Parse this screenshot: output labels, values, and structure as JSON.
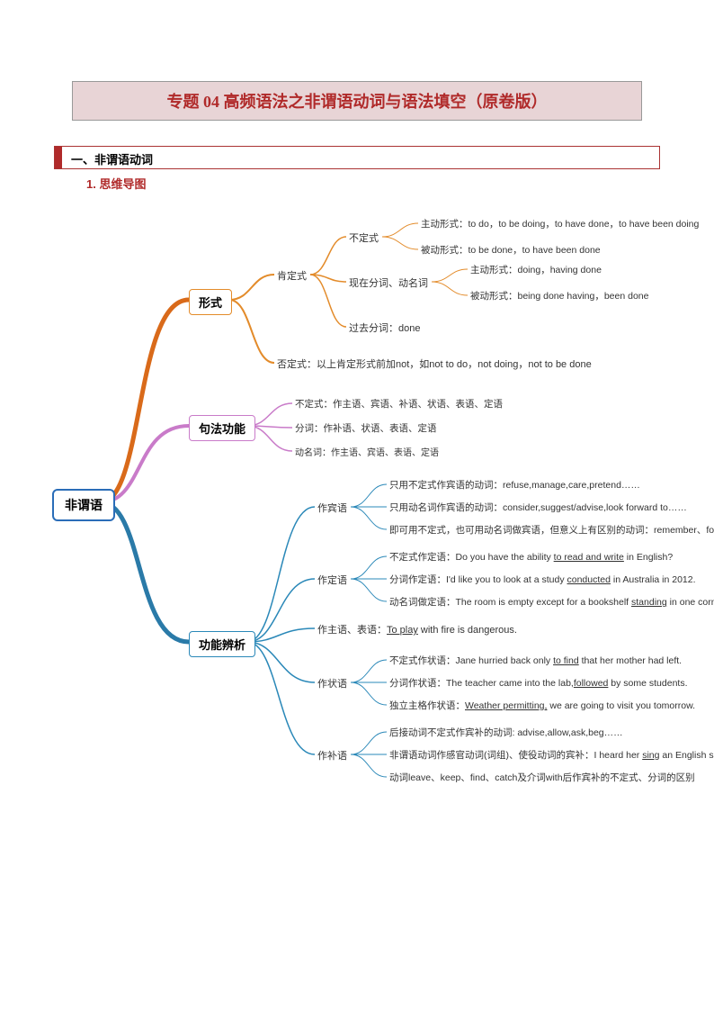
{
  "title": "专题 04 高频语法之非谓语动词与语法填空（原卷版）",
  "section1": "一、非谓语动词",
  "subsection1": "1. 思维导图",
  "root": "非谓语",
  "colors": {
    "root_border": "#2a6db8",
    "b1": "#e38b2a",
    "b2": "#c97bc9",
    "b3": "#2a88b8",
    "line1": "#e38b2a",
    "line2": "#c97bc9",
    "line3": "#2a88b8",
    "trunk1": "#d96a1a",
    "trunk3": "#2a7aa8"
  },
  "b1": {
    "label": "形式"
  },
  "b2": {
    "label": "句法功能"
  },
  "b3": {
    "label": "功能辨析"
  },
  "b1_affirm": "肯定式",
  "b1_inf": "不定式",
  "b1_inf_active": "主动形式：to do，to be doing，to have done，to have been doing",
  "b1_inf_passive": "被动形式：to be done，to have been done",
  "b1_ing": "现在分词、动名词",
  "b1_ing_active": "主动形式：doing，having done",
  "b1_ing_passive": "被动形式：being done having，been done",
  "b1_past": "过去分词：done",
  "b1_neg": "否定式：以上肯定形式前加not，如not to do，not doing，not to be done",
  "b2_inf": "不定式：作主语、宾语、补语、状语、表语、定语",
  "b2_part": "分词：作补语、状语、表语、定语",
  "b2_ger": "动名词：作主语、宾语、表语、定语",
  "b3_obj": "作宾语",
  "b3_obj_1": "只用不定式作宾语的动词：refuse,manage,care,pretend……",
  "b3_obj_2": "只用动名词作宾语的动词：consider,suggest/advise,look forward to……",
  "b3_obj_3": "即可用不定式，也可用动名词做宾语，但意义上有区别的动词：remember、forget……",
  "b3_attr": "作定语",
  "b3_attr_1": "不定式作定语：Do you have the ability <u>to read and write</u> in English?",
  "b3_attr_2": "分词作定语：I'd like you to look at a study <u>conducted</u> in Australia in 2012.",
  "b3_attr_3": "动名词做定语：The room is empty except for a bookshelf <u>standing</u> in one corner.",
  "b3_subj": "作主语、表语：<u>To play</u> with fire is dangerous.",
  "b3_adv": "作状语",
  "b3_adv_1": "不定式作状语：Jane hurried back only <u>to find</u> that her mother had left.",
  "b3_adv_2": "分词作状语：The teacher came into the lab,<u>followed</u> by some students.",
  "b3_adv_3": "独立主格作状语：<u>Weather permitting,</u> we are going to visit you tomorrow.",
  "b3_comp": "作补语",
  "b3_comp_1": "后接动词不定式作宾补的动词: advise,allow,ask,beg……",
  "b3_comp_2": "非谓语动词作感官动词(词组)、使役动词的宾补：I heard her <u>sing</u> an English song just now.",
  "b3_comp_3": "动词leave、keep、find、catch及介词with后作宾补的不定式、分词的区别"
}
